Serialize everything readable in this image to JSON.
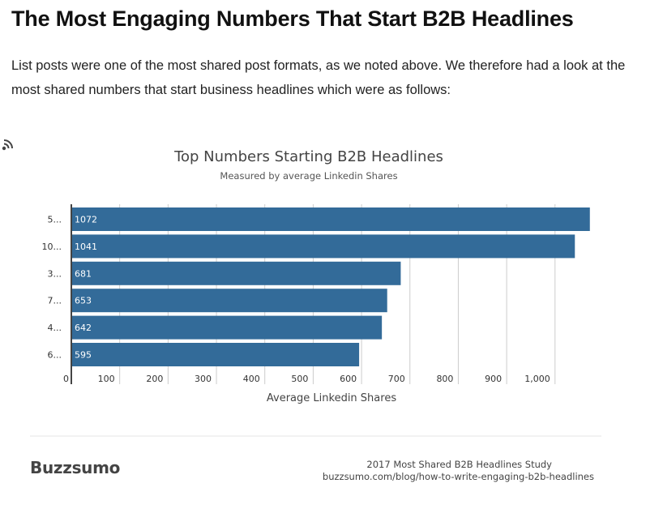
{
  "article": {
    "title": "The Most Engaging Numbers That Start B2B Headlines",
    "intro": "List posts were one of the most shared post formats, as we noted above. We therefore had a look at the most shared numbers that start business headlines which were as follows:"
  },
  "footer": {
    "brand": "Buzzsumo",
    "source_title": "2017 Most Shared B2B Headlines Study",
    "source_url": "buzzsumo.com/blog/how-to-write-engaging-b2b-headlines"
  },
  "colors": {
    "bar": "#336b99",
    "grid": "#cccccc",
    "axis": "#444444"
  },
  "chart_data": {
    "type": "bar",
    "orientation": "horizontal",
    "title": "Top Numbers Starting B2B Headlines",
    "subtitle": "Measured by average Linkedin Shares",
    "xlabel": "Average Linkedin Shares",
    "ylabel": "",
    "categories": [
      "5...",
      "10...",
      "3...",
      "7...",
      "4...",
      "6..."
    ],
    "values": [
      1072,
      1041,
      681,
      653,
      642,
      595
    ],
    "xlim": [
      0,
      1100
    ],
    "xticks": [
      0,
      100,
      200,
      300,
      400,
      500,
      600,
      700,
      800,
      900,
      1000
    ],
    "xtick_labels": [
      "0",
      "100",
      "200",
      "300",
      "400",
      "500",
      "600",
      "700",
      "800",
      "900",
      "1,000"
    ],
    "grid": true,
    "data_labels": true
  }
}
